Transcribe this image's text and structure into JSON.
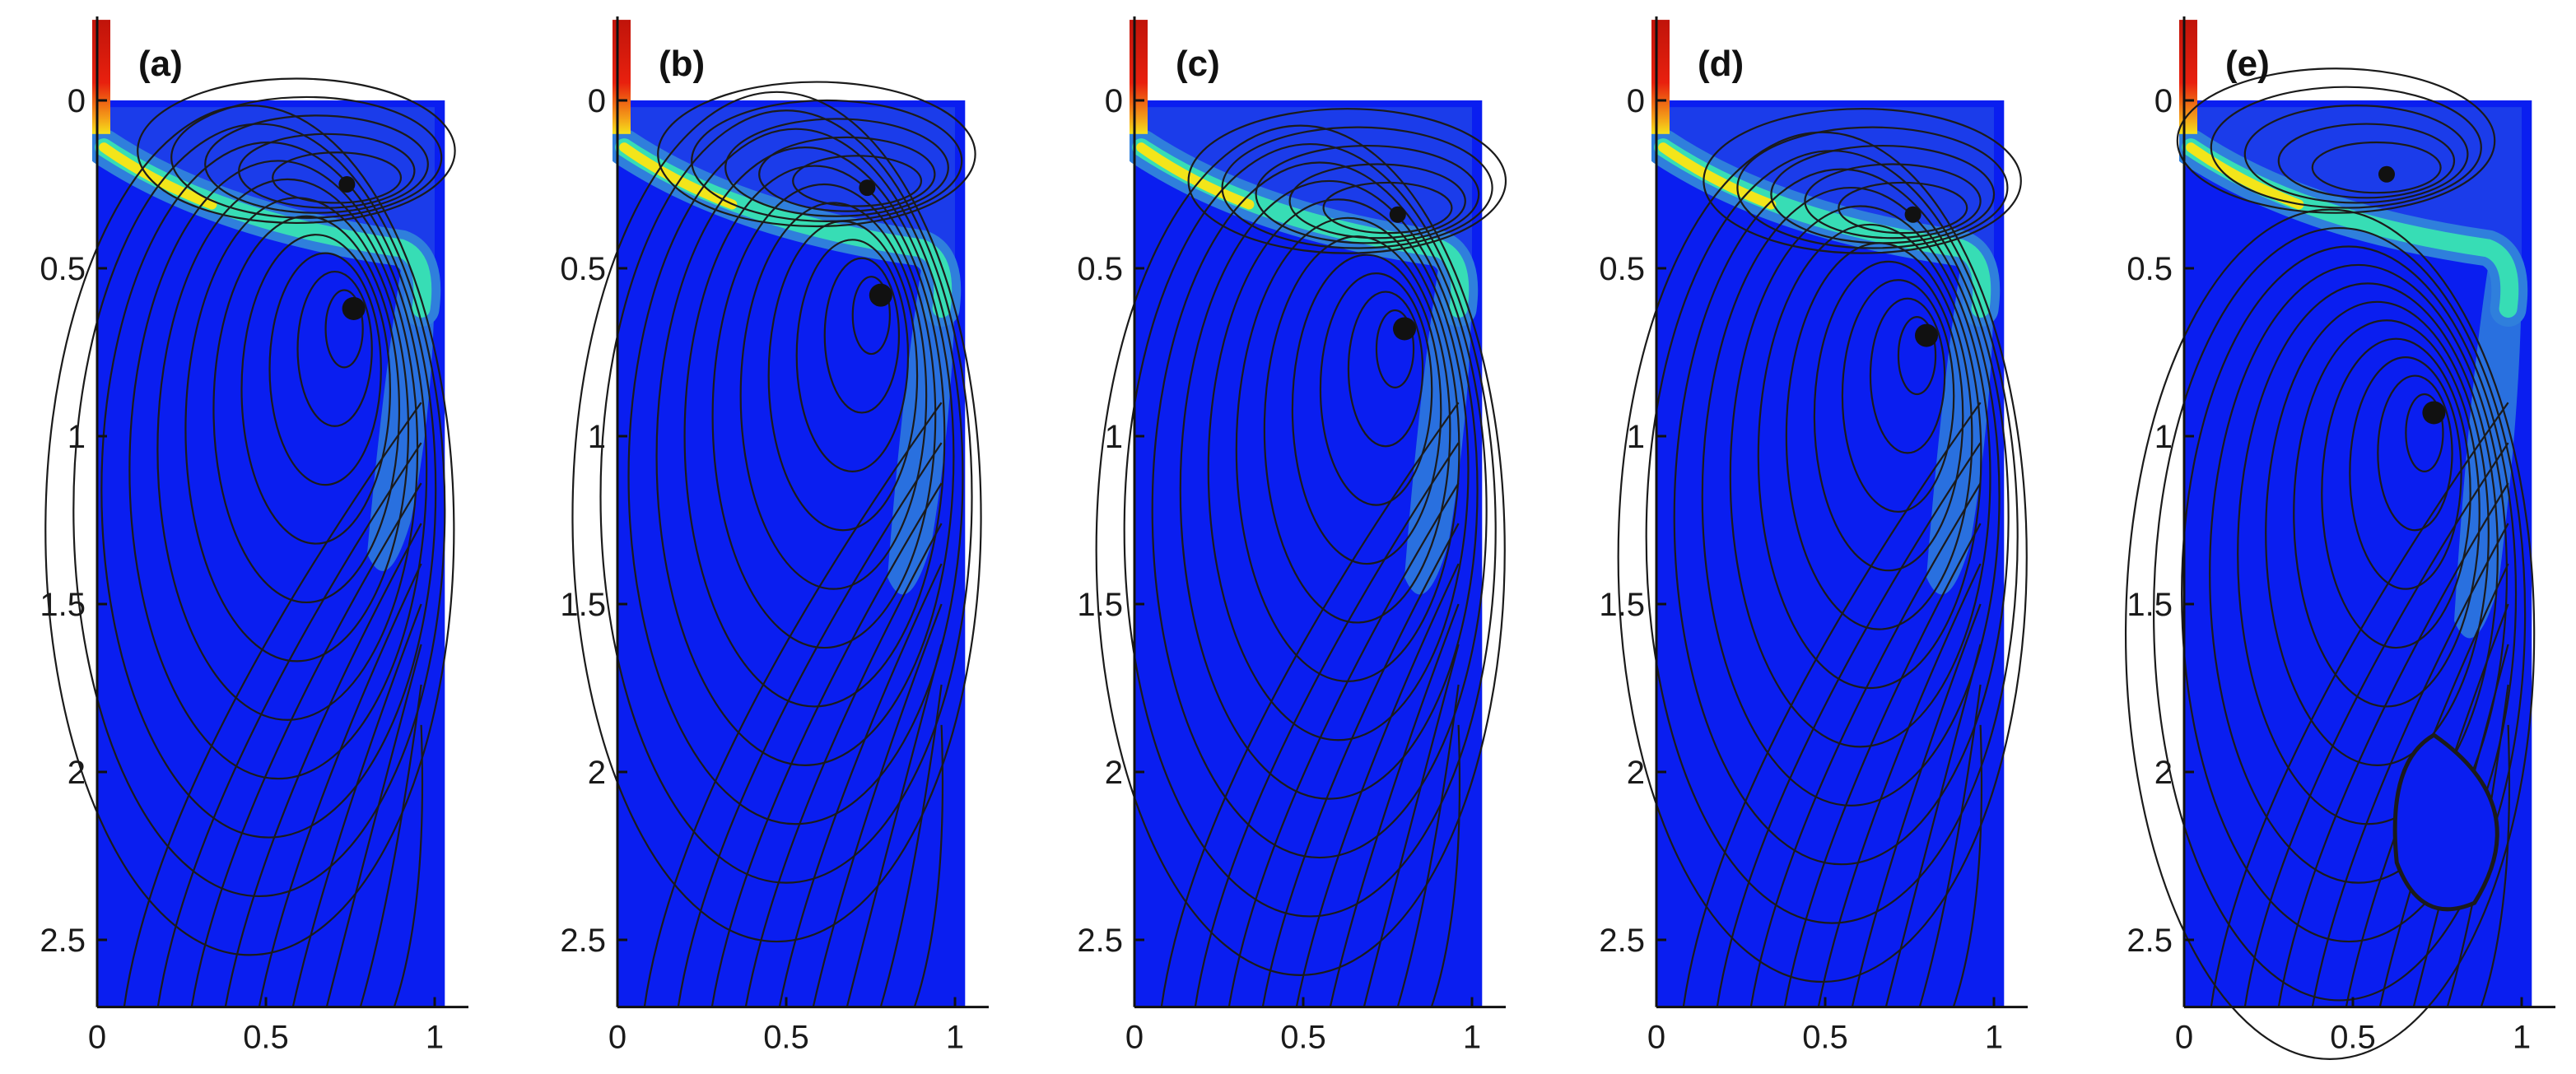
{
  "figure": {
    "panels": [
      {
        "label": "(a)",
        "eddy_upper": [
          0.74,
          0.25
        ],
        "eddy_main": [
          0.76,
          0.62
        ],
        "extra_eddy": null
      },
      {
        "label": "(b)",
        "eddy_upper": [
          0.74,
          0.26
        ],
        "eddy_main": [
          0.78,
          0.58
        ],
        "extra_eddy": null
      },
      {
        "label": "(c)",
        "eddy_upper": [
          0.78,
          0.34
        ],
        "eddy_main": [
          0.8,
          0.68
        ],
        "extra_eddy": null
      },
      {
        "label": "(d)",
        "eddy_upper": [
          0.76,
          0.34
        ],
        "eddy_main": [
          0.8,
          0.7
        ],
        "extra_eddy": null
      },
      {
        "label": "(e)",
        "eddy_upper": [
          0.6,
          0.22
        ],
        "eddy_main": [
          0.74,
          0.93
        ],
        "extra_eddy": [
          0.8,
          2.22
        ]
      }
    ],
    "x_ticks": [
      "0",
      "0.5",
      "1"
    ],
    "y_ticks": [
      "0",
      "0.5",
      "1",
      "1.5",
      "2",
      "2.5"
    ],
    "x_range": [
      0,
      1.1
    ],
    "y_range": [
      0,
      2.7
    ],
    "colors": {
      "field": "#0a1ef0",
      "jet_core": "#f3e51a",
      "jet_mid": "#38e8b0",
      "jet_outer": "#2f7fdc",
      "inlet_hot": "#e8200e",
      "inlet_warm": "#f39a18",
      "streamline": "#1b1b1b"
    }
  }
}
